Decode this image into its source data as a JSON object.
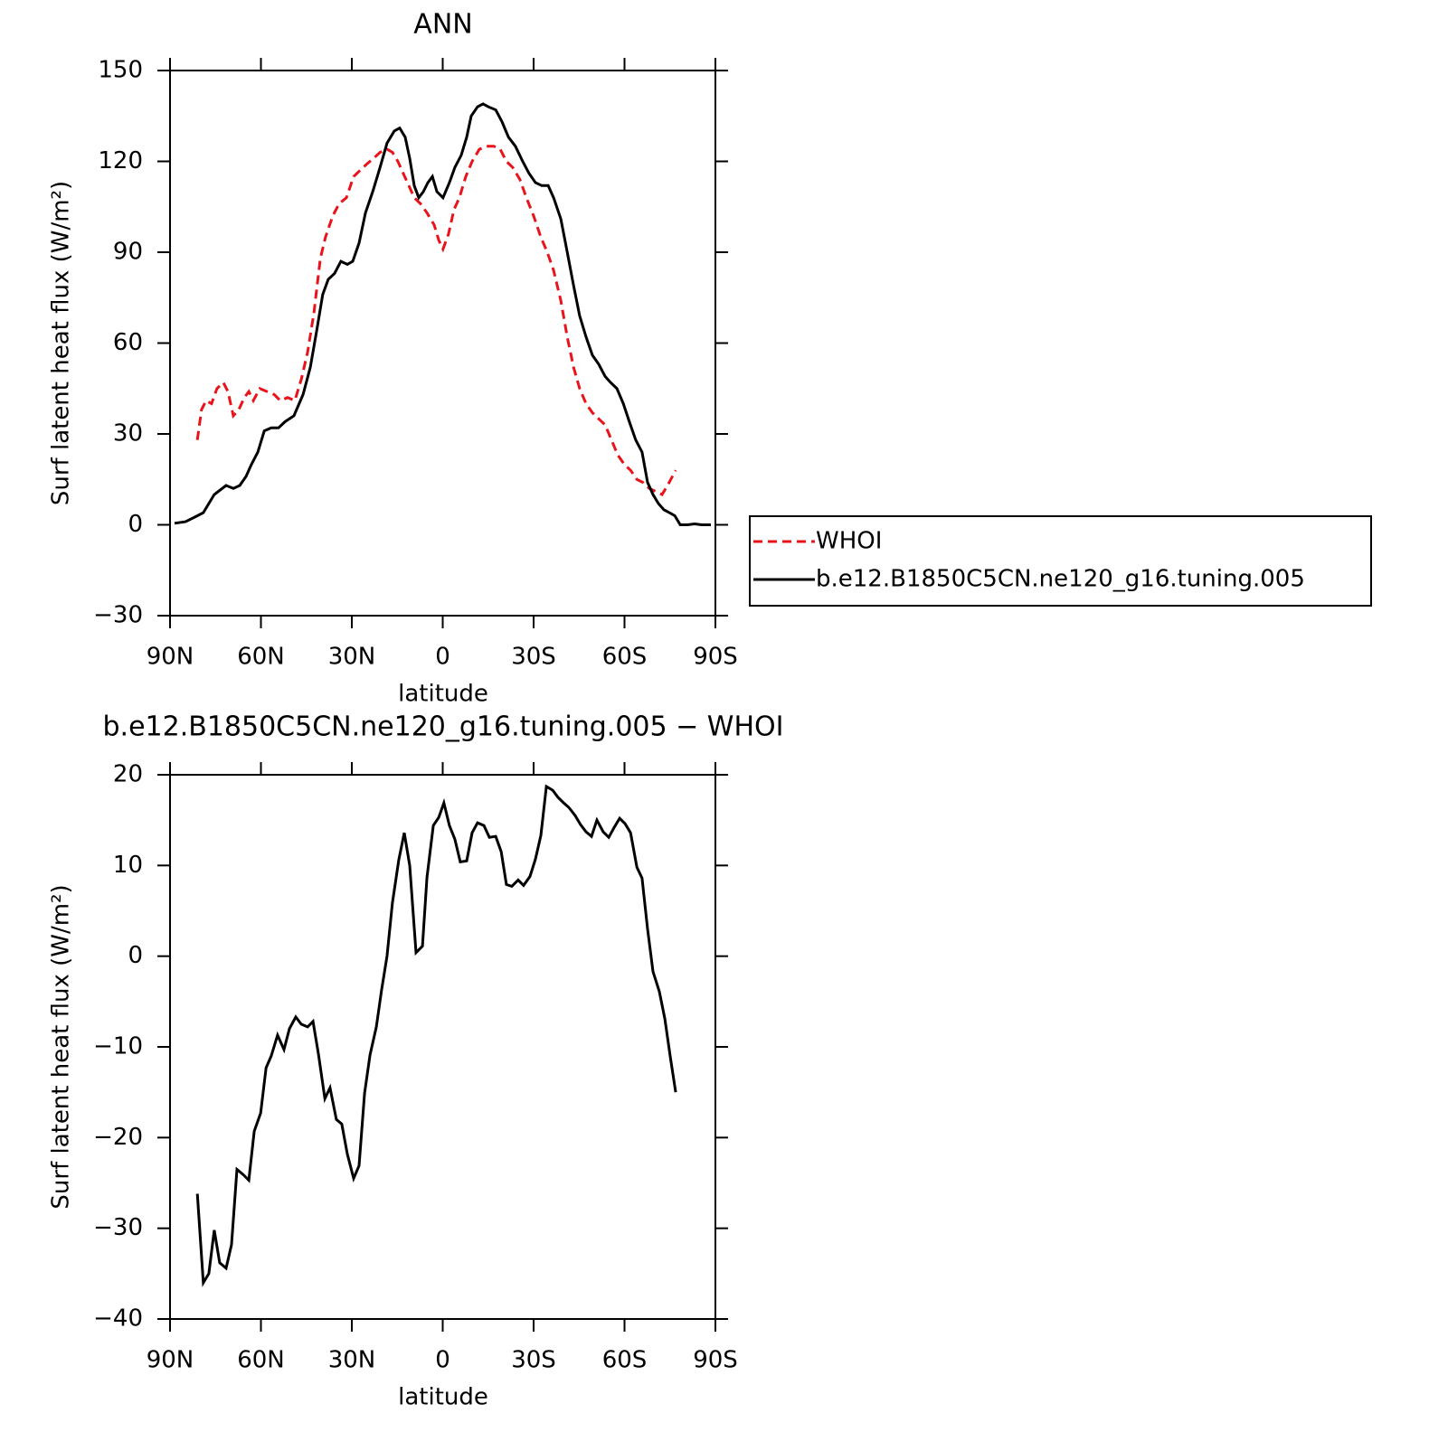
{
  "chart_data": [
    {
      "type": "line",
      "title": "ANN",
      "xlabel": "latitude",
      "ylabel": "Surf latent heat flux (W/m²)",
      "xlim": [
        90,
        -90
      ],
      "xticks": [
        {
          "value": 90,
          "label": "90N"
        },
        {
          "value": 60,
          "label": "60N"
        },
        {
          "value": 30,
          "label": "30N"
        },
        0,
        {
          "value": -30,
          "label": "30S"
        },
        {
          "value": -60,
          "label": "60S"
        },
        {
          "value": -90,
          "label": "90S"
        }
      ],
      "ylim": [
        -30,
        150
      ],
      "yticks": [
        {
          "value": -30,
          "label": "−30"
        },
        0,
        30,
        60,
        90,
        120,
        150
      ],
      "legend": "right",
      "series": [
        {
          "name": "WHOI",
          "color": "#e8131b",
          "dash": "10,6",
          "x": [
            81.0,
            79.6,
            78.1,
            76.3,
            74.5,
            72.4,
            70.9,
            69.1,
            67.3,
            65.5,
            64.0,
            62.5,
            60.4,
            58.0,
            55.6,
            53.6,
            51.2,
            48.8,
            46.7,
            44.6,
            42.5,
            40.4,
            38.7,
            36.3,
            34.2,
            31.8,
            29.4,
            27.3,
            25.2,
            22.8,
            20.7,
            18.4,
            16.6,
            14.8,
            13.0,
            11.2,
            9.4,
            7.3,
            5.2,
            2.8,
            1.3,
            -0.1,
            -1.9,
            -3.7,
            -5.5,
            -7.6,
            -9.7,
            -12.1,
            -14.5,
            -16.9,
            -19.0,
            -21.0,
            -23.1,
            -25.5,
            -27.6,
            -30.0,
            -32.4,
            -34.5,
            -36.6,
            -39.0,
            -41.1,
            -43.2,
            -45.2,
            -47.3,
            -49.4,
            -51.5,
            -53.6,
            -55.7,
            -57.8,
            -59.9,
            -62.0,
            -64.1,
            -66.1,
            -68.2,
            -70.3,
            -72.4,
            -74.2,
            -76.9
          ],
          "values": [
            28,
            38,
            41,
            40,
            45,
            47,
            44,
            36,
            38,
            42,
            44,
            41,
            45,
            44,
            43,
            41,
            42,
            41,
            48,
            57,
            70,
            88,
            95,
            102,
            106,
            108,
            115,
            117,
            119,
            121,
            123,
            124,
            123,
            120,
            116,
            112,
            108,
            106,
            103,
            99,
            94,
            91,
            96,
            104,
            108,
            115,
            120,
            124,
            125,
            125,
            124,
            120,
            118,
            114,
            108,
            102,
            95,
            90,
            84,
            74,
            62,
            52,
            45,
            40,
            37,
            35,
            33,
            28,
            23,
            20,
            18,
            15,
            14,
            12,
            11,
            10,
            13,
            18
          ]
        },
        {
          "name": "b.e12.B1850C5CN.ne120_g16.tuning.005",
          "color": "#000000",
          "dash": "none",
          "x": [
            88.5,
            84.9,
            81.9,
            79.0,
            75.4,
            71.5,
            69.1,
            67.0,
            64.9,
            63.1,
            61.0,
            58.9,
            56.6,
            54.2,
            52.1,
            49.1,
            46.1,
            43.7,
            41.6,
            39.6,
            37.8,
            35.7,
            33.6,
            31.5,
            29.7,
            27.6,
            25.5,
            23.1,
            20.7,
            18.4,
            16.0,
            14.2,
            12.4,
            10.9,
            9.4,
            7.9,
            6.4,
            4.9,
            3.4,
            1.9,
            -0.1,
            -2.2,
            -4.0,
            -6.1,
            -7.9,
            -9.4,
            -11.5,
            -13.3,
            -15.1,
            -17.5,
            -19.6,
            -21.7,
            -24.0,
            -26.4,
            -28.5,
            -30.6,
            -32.7,
            -34.8,
            -36.6,
            -39.0,
            -41.1,
            -43.2,
            -45.2,
            -47.3,
            -49.4,
            -51.5,
            -53.6,
            -55.4,
            -57.5,
            -59.6,
            -61.6,
            -63.7,
            -65.8,
            -67.6,
            -69.4,
            -71.2,
            -73.0,
            -74.8,
            -76.6,
            -78.4,
            -80.8,
            -83.1,
            -85.5,
            -88.5
          ],
          "values": [
            0.5,
            1,
            2.5,
            4,
            10,
            13,
            12,
            13,
            16,
            20,
            24,
            31,
            32,
            32,
            34,
            36,
            43,
            52,
            64,
            76,
            81,
            83,
            87,
            86,
            87,
            93,
            103,
            110,
            118,
            126,
            130,
            131,
            128,
            121,
            112,
            108,
            110,
            113,
            115,
            110,
            108,
            113,
            118,
            122,
            128,
            135,
            138,
            139,
            138,
            137,
            133,
            128,
            125,
            120,
            116,
            113,
            112,
            112,
            108,
            101,
            90,
            79,
            69,
            62,
            56,
            53,
            49,
            47,
            45,
            40,
            34,
            28,
            24,
            14,
            10,
            7,
            5,
            4,
            3,
            0,
            0,
            0.3,
            0,
            0
          ]
        }
      ]
    },
    {
      "type": "line",
      "title": "b.e12.B1850C5CN.ne120_g16.tuning.005 − WHOI",
      "xlabel": "latitude",
      "ylabel": "Surf latent heat flux (W/m²)",
      "xlim": [
        90,
        -90
      ],
      "xticks": [
        {
          "value": 90,
          "label": "90N"
        },
        {
          "value": 60,
          "label": "60N"
        },
        {
          "value": 30,
          "label": "30N"
        },
        0,
        {
          "value": -30,
          "label": "30S"
        },
        {
          "value": -60,
          "label": "60S"
        },
        {
          "value": -90,
          "label": "90S"
        }
      ],
      "ylim": [
        -40,
        20
      ],
      "yticks": [
        {
          "value": -40,
          "label": "−40"
        },
        {
          "value": -30,
          "label": "−30"
        },
        {
          "value": -20,
          "label": "−20"
        },
        {
          "value": -10,
          "label": "−10"
        },
        0,
        10,
        20
      ],
      "series": [
        {
          "color": "#000000",
          "dash": "none",
          "x": [
            81.0,
            79.0,
            77.2,
            75.4,
            73.6,
            71.5,
            69.7,
            67.9,
            65.8,
            64.0,
            62.2,
            60.1,
            58.3,
            56.6,
            54.5,
            52.4,
            50.6,
            48.5,
            46.7,
            44.6,
            42.8,
            41.0,
            38.9,
            37.2,
            35.1,
            33.3,
            31.5,
            29.4,
            27.6,
            25.8,
            24.0,
            21.9,
            20.2,
            18.4,
            16.6,
            14.5,
            12.7,
            10.9,
            8.8,
            6.7,
            5.2,
            3.1,
            1.3,
            -0.4,
            -2.2,
            -4.0,
            -5.8,
            -7.9,
            -9.7,
            -11.5,
            -13.6,
            -15.4,
            -17.5,
            -19.3,
            -21.0,
            -22.8,
            -24.9,
            -26.7,
            -28.8,
            -30.6,
            -32.4,
            -34.2,
            -36.3,
            -38.1,
            -39.9,
            -41.6,
            -43.7,
            -45.5,
            -47.3,
            -49.1,
            -50.9,
            -53.0,
            -54.8,
            -56.6,
            -58.4,
            -60.2,
            -62.0,
            -64.1,
            -65.8,
            -67.6,
            -69.4,
            -71.5,
            -73.3,
            -75.1,
            -76.9
          ],
          "values": [
            -26.2,
            -36,
            -35,
            -30.2,
            -33.8,
            -34.4,
            -31.8,
            -23.5,
            -24.1,
            -24.7,
            -19.3,
            -17.3,
            -12.3,
            -11,
            -8.7,
            -10.3,
            -8,
            -6.7,
            -7.5,
            -7.8,
            -7.2,
            -10.8,
            -15.7,
            -14.5,
            -18,
            -18.5,
            -21.8,
            -24.5,
            -23.1,
            -15.1,
            -10.9,
            -7.8,
            -3.8,
            0,
            5.9,
            10.6,
            13.6,
            10,
            0.4,
            1.1,
            8.7,
            14.4,
            15.3,
            16.9,
            14.4,
            12.9,
            10.4,
            10.5,
            13.6,
            14.7,
            14.4,
            13.1,
            13.2,
            11.5,
            7.9,
            7.7,
            8.4,
            7.8,
            8.8,
            10.7,
            13.3,
            18.7,
            18.3,
            17.5,
            16.9,
            16.4,
            15.5,
            14.5,
            13.7,
            13.2,
            15,
            13.7,
            13.1,
            14.2,
            15.2,
            14.6,
            13.6,
            9.8,
            8.6,
            3,
            -1.7,
            -3.9,
            -6.9,
            -11.1,
            -15
          ]
        }
      ]
    }
  ]
}
